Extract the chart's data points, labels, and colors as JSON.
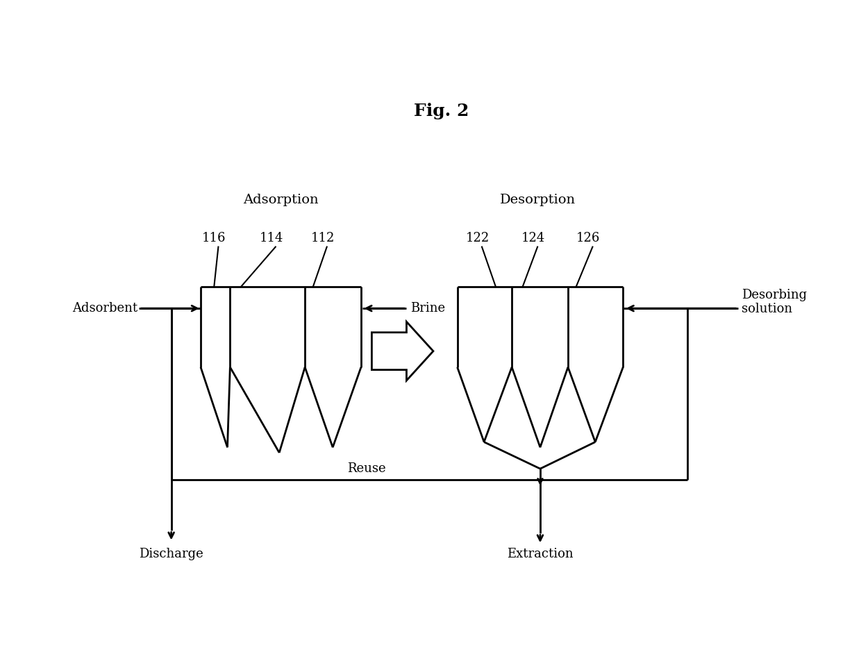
{
  "title": "Fig. 2",
  "bg_color": "#ffffff",
  "line_color": "#000000",
  "title_fontsize": 18,
  "label_fontsize": 13,
  "number_fontsize": 13,
  "adsorption_label": "Adsorption",
  "desorption_label": "Desorption",
  "ads_numbers": [
    "116",
    "114",
    "112"
  ],
  "des_numbers": [
    "122",
    "124",
    "126"
  ],
  "adsorbent_label": "Adsorbent",
  "brine_label": "Brine",
  "discharge_label": "Discharge",
  "reuse_label": "Reuse",
  "desorbing_label": "Desorbing\nsolution",
  "extraction_label": "Extraction"
}
